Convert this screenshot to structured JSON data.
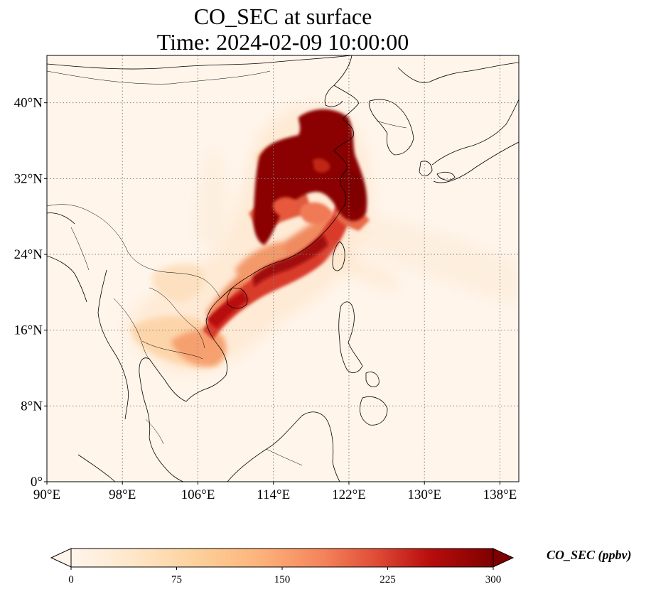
{
  "title": {
    "line1": "CO_SEC at surface",
    "line2": "Time: 2024-02-09 10:00:00"
  },
  "map": {
    "lon_range": [
      90,
      140
    ],
    "lat_range": [
      0,
      45
    ],
    "lon_ticks": [
      {
        "value": 90,
        "label": "90°E"
      },
      {
        "value": 98,
        "label": "98°E"
      },
      {
        "value": 106,
        "label": "106°E"
      },
      {
        "value": 114,
        "label": "114°E"
      },
      {
        "value": 122,
        "label": "122°E"
      },
      {
        "value": 130,
        "label": "130°E"
      },
      {
        "value": 138,
        "label": "138°E"
      }
    ],
    "lat_ticks": [
      {
        "value": 0,
        "label": "0°"
      },
      {
        "value": 8,
        "label": "8°N"
      },
      {
        "value": 16,
        "label": "16°N"
      },
      {
        "value": 24,
        "label": "24°N"
      },
      {
        "value": 32,
        "label": "32°N"
      },
      {
        "value": 40,
        "label": "40°N"
      }
    ],
    "gridlines": true,
    "background_color": "#fff5eb",
    "coastline_color": "#000000"
  },
  "colorbar": {
    "label": "CO_SEC (ppbv)",
    "colormap": "OrRd",
    "range": [
      0,
      300
    ],
    "extend": "both",
    "ticks": [
      {
        "value": 0,
        "label": "0"
      },
      {
        "value": 75,
        "label": "75"
      },
      {
        "value": 150,
        "label": "150"
      },
      {
        "value": 225,
        "label": "225"
      },
      {
        "value": 300,
        "label": "300"
      }
    ],
    "low_color": "#fff5eb",
    "high_color": "#7f0000"
  }
}
